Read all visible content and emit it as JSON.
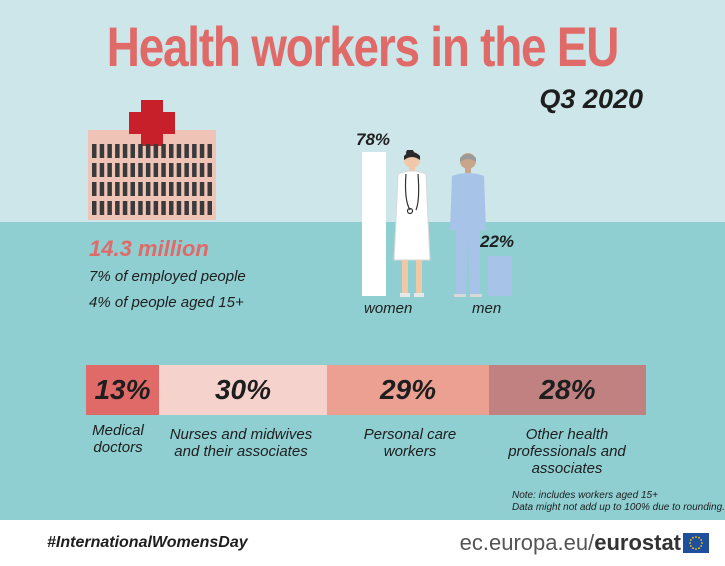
{
  "header": {
    "title": "Health workers in the EU",
    "subtitle": "Q3 2020"
  },
  "stats": {
    "total": "14.3 million",
    "share_employed": "7% of employed people",
    "share_population": "4% of people aged 15+"
  },
  "gender": {
    "women": {
      "label": "women",
      "value_text": "78%",
      "value": 78
    },
    "men": {
      "label": "men",
      "value_text": "22%",
      "value": 22
    }
  },
  "categories": [
    {
      "value_text": "13%",
      "value": 13,
      "label_line1": "Medical",
      "label_line2": "doctors",
      "label_line3": "",
      "color": "#e06a68"
    },
    {
      "value_text": "30%",
      "value": 30,
      "label_line1": "Nurses and  midwives",
      "label_line2": "and their associates",
      "label_line3": "",
      "color": "#f5d2cc"
    },
    {
      "value_text": "29%",
      "value": 29,
      "label_line1": "Personal care",
      "label_line2": "workers",
      "label_line3": "",
      "color": "#eba092"
    },
    {
      "value_text": "28%",
      "value": 28,
      "label_line1": "Other health",
      "label_line2": "professionals and",
      "label_line3": "associates",
      "color": "#c08180"
    }
  ],
  "note": {
    "line1": "Note: includes workers aged 15+",
    "line2": "Data might not add up to 100% due to rounding."
  },
  "footer": {
    "hashtag": "#InternationalWomensDay",
    "domain": "ec.europa.eu/",
    "brand": "eurostat"
  },
  "icons": [
    "hospital-building-icon",
    "red-cross-icon",
    "female-doctor-icon",
    "male-worker-icon",
    "eu-flag-icon"
  ],
  "colors": {
    "title": "#e06a68",
    "sky": "#cde6ea",
    "sea": "#8fcfd2",
    "men_bar": "#a7c3e8"
  }
}
